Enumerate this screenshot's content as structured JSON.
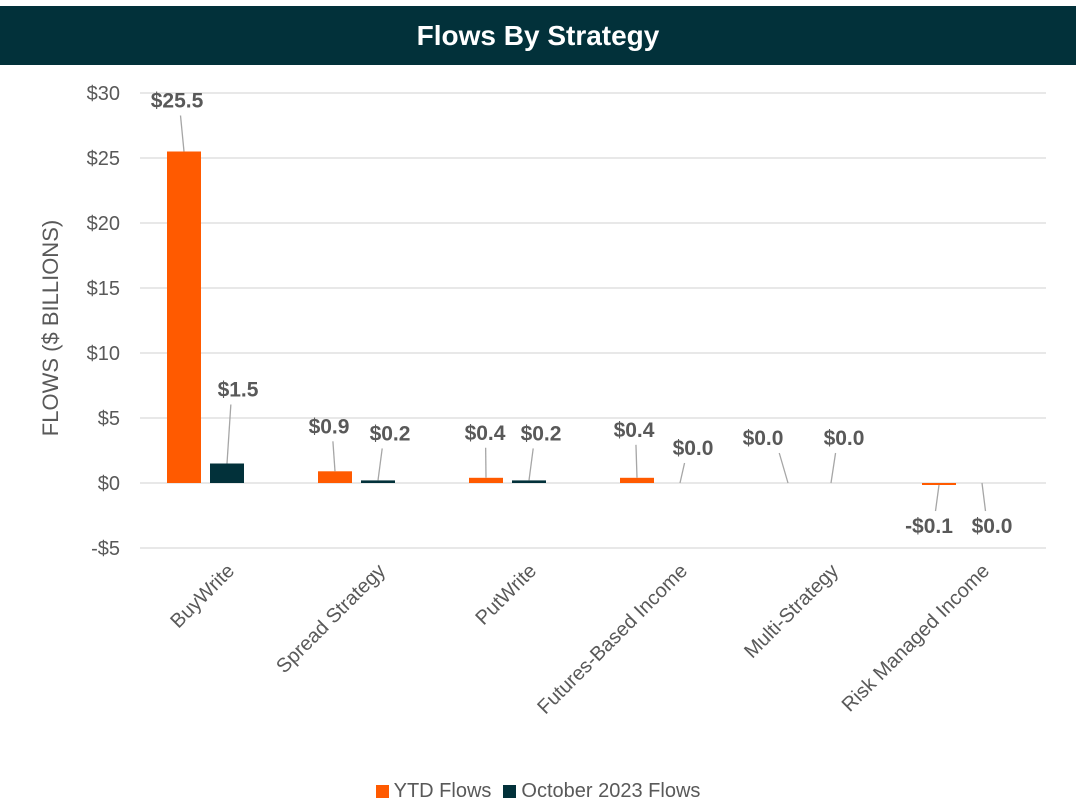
{
  "chart_data": {
    "type": "bar",
    "title": "Flows By Strategy",
    "ylabel": "FLOWS ($ BILLIONS)",
    "xlabel": "",
    "ylim": [
      -5,
      30
    ],
    "yticks": [
      -5,
      0,
      5,
      10,
      15,
      20,
      25,
      30
    ],
    "ytick_labels": [
      "-$5",
      "$0",
      "$5",
      "$10",
      "$15",
      "$20",
      "$25",
      "$30"
    ],
    "grid": true,
    "legend_position": "bottom",
    "categories": [
      "BuyWrite",
      "Spread Strategy",
      "PutWrite",
      "Futures-Based Income",
      "Multi-Strategy",
      "Risk Managed Income"
    ],
    "series": [
      {
        "name": "YTD Flows",
        "color": "#ff5a00",
        "values": [
          25.5,
          0.9,
          0.4,
          0.4,
          0.0,
          -0.1
        ],
        "labels": [
          "$25.5",
          "$0.9",
          "$0.4",
          "$0.4",
          "$0.0",
          "-$0.1"
        ]
      },
      {
        "name": "October 2023 Flows",
        "color": "#02313a",
        "values": [
          1.5,
          0.2,
          0.2,
          0.0,
          0.0,
          0.0
        ],
        "labels": [
          "$1.5",
          "$0.2",
          "$0.2",
          "$0.0",
          "$0.0",
          "$0.0"
        ]
      }
    ]
  }
}
